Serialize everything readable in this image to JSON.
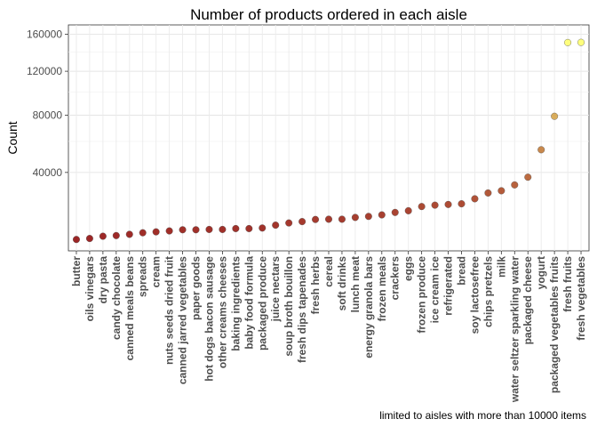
{
  "chart_data": {
    "type": "scatter",
    "title": "Number of products ordered in each aisle",
    "xlabel": "",
    "ylabel": "Count",
    "caption": "limited to aisles with more than 10000 items",
    "y_scale": "sqrt",
    "ylim": [
      10000,
      160000
    ],
    "yticks": [
      40000,
      80000,
      120000,
      160000
    ],
    "grid": true,
    "color_low": "#8b0000",
    "color_high": "#ffff66",
    "categories": [
      "butter",
      "oils vinegars",
      "dry pasta",
      "candy chocolate",
      "canned meals beans",
      "spreads",
      "cream",
      "nuts seeds dried fruit",
      "canned jarred vegetables",
      "paper goods",
      "hot dogs bacon sausage",
      "other creams cheeses",
      "baking ingredients",
      "baby food formula",
      "packaged produce",
      "juice nectars",
      "soup broth bouillon",
      "fresh dips tapenades",
      "fresh herbs",
      "cereal",
      "soft drinks",
      "lunch meat",
      "energy granola bars",
      "frozen meals",
      "crackers",
      "eggs",
      "frozen produce",
      "ice cream ice",
      "refrigerated",
      "bread",
      "soy lactosefree",
      "chips pretzels",
      "milk",
      "water seltzer sparkling water",
      "packaged cheese",
      "yogurt",
      "packaged vegetables fruits",
      "fresh fruits",
      "fresh vegetables"
    ],
    "values": [
      10600,
      10900,
      11600,
      11800,
      12200,
      12700,
      13000,
      13300,
      13700,
      13700,
      13800,
      13800,
      14100,
      14100,
      14300,
      15300,
      16100,
      16600,
      17400,
      17500,
      17500,
      18200,
      18600,
      19200,
      20200,
      20900,
      22700,
      23300,
      23600,
      23900,
      26200,
      29000,
      30100,
      33100,
      37300,
      54200,
      79100,
      150500,
      150700
    ]
  }
}
